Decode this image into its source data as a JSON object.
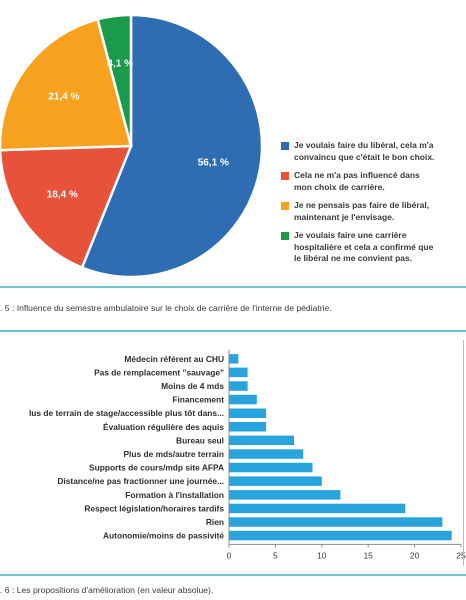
{
  "chart_data": [
    {
      "type": "pie",
      "slices": [
        {
          "label_lines": [
            "Je voulais faire du libéral, cela m'a",
            "convaincu que c'était le bon choix."
          ],
          "value": 56.1,
          "value_label": "56,1 %",
          "color": "#2f6db3"
        },
        {
          "label_lines": [
            "Cela ne m'a pas influencé dans",
            "mon choix de carrière."
          ],
          "value": 18.4,
          "value_label": "18,4 %",
          "color": "#e8513a"
        },
        {
          "label_lines": [
            "Je ne pensais pas faire de libéral,",
            "maintenant je l'envisage."
          ],
          "value": 21.4,
          "value_label": "21,4 %",
          "color": "#f6a21e"
        },
        {
          "label_lines": [
            "Je voulais faire une carrière",
            "hospitalière et cela a confirmé que",
            "le libéral ne me convient pas."
          ],
          "value": 4.1,
          "value_label": "4,1 %",
          "color": "#1a9a4a"
        }
      ],
      "legend_order": [
        0,
        1,
        2,
        3
      ],
      "legend_position": "right",
      "caption": ". 5 : Influence du semestre ambulatoire sur le choix de carrière de l'interne de pédiatrie."
    },
    {
      "type": "bar",
      "orientation": "horizontal",
      "categories": [
        "Médecin référent au CHU",
        "Pas de remplacement \"sauvage\"",
        "Moins de 4 mds",
        "Financement",
        "lus de terrain de stage/accessible plus tôt dans...",
        "Évaluation régulière des aquis",
        "Bureau seul",
        "Plus de mds/autre terrain",
        "Supports de cours/mdp site AFPA",
        "Distance/ne pas fractionner une journée...",
        "Formation à l'installation",
        "Respect législation/horaires tardifs",
        "Rien",
        "Autonomie/moins de passivité"
      ],
      "values": [
        1,
        2,
        2,
        3,
        4,
        4,
        7,
        8,
        9,
        10,
        12,
        19,
        23,
        24
      ],
      "xlim": [
        0,
        25
      ],
      "xticks": [
        "0",
        "5",
        "10",
        "15",
        "20",
        "25"
      ],
      "bar_color": "#29a3dc",
      "caption": ". 6 : Les propositions d'amélioration (en valeur absolue)."
    }
  ]
}
